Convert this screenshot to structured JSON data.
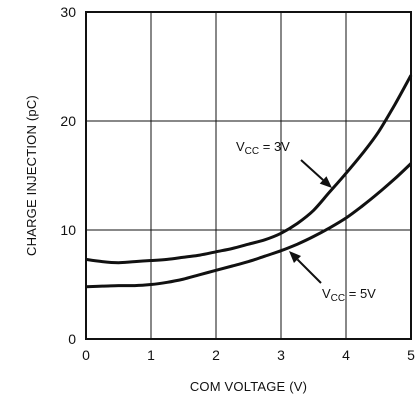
{
  "chart_data": {
    "type": "line",
    "xlabel": "COM VOLTAGE (V)",
    "ylabel": "CHARGE INJECTION (pC)",
    "xlim": [
      0,
      5
    ],
    "ylim": [
      0,
      30
    ],
    "x_ticks": [
      "0",
      "1",
      "2",
      "3",
      "4",
      "5"
    ],
    "y_ticks": [
      "0",
      "10",
      "20",
      "30"
    ],
    "grid": true,
    "series": [
      {
        "name": "VCC = 3V",
        "label_main": "V",
        "label_sub": "CC",
        "label_rest": " = 3V",
        "x": [
          0,
          0.25,
          0.5,
          0.75,
          1.0,
          1.25,
          1.5,
          1.75,
          2.0,
          2.25,
          2.5,
          2.75,
          3.0,
          3.25,
          3.5,
          3.75,
          4.0,
          4.25,
          4.5,
          4.75,
          5.0
        ],
        "values": [
          7.3,
          7.1,
          7.0,
          7.1,
          7.2,
          7.3,
          7.5,
          7.7,
          8.0,
          8.3,
          8.7,
          9.1,
          9.7,
          10.6,
          11.8,
          13.5,
          15.2,
          17.0,
          19.0,
          21.5,
          24.2
        ]
      },
      {
        "name": "VCC = 5V",
        "label_main": "V",
        "label_sub": "CC",
        "label_rest": " = 5V",
        "x": [
          0,
          0.25,
          0.5,
          0.75,
          1.0,
          1.25,
          1.5,
          1.75,
          2.0,
          2.25,
          2.5,
          2.75,
          3.0,
          3.25,
          3.5,
          3.75,
          4.0,
          4.25,
          4.5,
          4.75,
          5.0
        ],
        "values": [
          4.8,
          4.85,
          4.9,
          4.9,
          5.0,
          5.2,
          5.5,
          5.9,
          6.3,
          6.7,
          7.1,
          7.6,
          8.1,
          8.7,
          9.4,
          10.2,
          11.1,
          12.2,
          13.4,
          14.7,
          16.1
        ]
      }
    ]
  }
}
